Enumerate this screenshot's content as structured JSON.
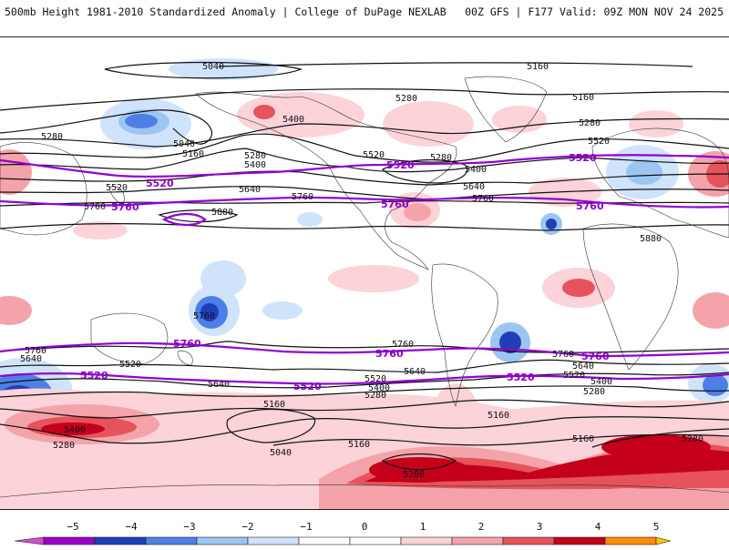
{
  "header": {
    "left_title": "500mb Height 1981-2010 Standardized Anomaly | College of DuPage NEXLAB",
    "right_title": "00Z GFS | F177 Valid: 09Z MON NOV 24 2025"
  },
  "map": {
    "black_contour_labels": [
      "5040",
      "5160",
      "5280",
      "5400",
      "5520",
      "5640",
      "5760",
      "5880"
    ],
    "purple_contour_labels": [
      "5520",
      "5760"
    ],
    "colors": {
      "contour": "#111111",
      "highlight_contour": "#9400d3",
      "neg1": "#cfe4fb",
      "neg2": "#9cc6f2",
      "neg3": "#4d7fe6",
      "neg4": "#1f3fb8",
      "pos1": "#fbd3d8",
      "pos2": "#f4a3aa",
      "pos3": "#e6535c",
      "pos4": "#c4001b"
    }
  },
  "legend": {
    "ticks": [
      "−5",
      "−4",
      "−3",
      "−2",
      "−1",
      "0",
      "1",
      "2",
      "3",
      "4",
      "5"
    ],
    "colors": [
      "#d34cd6",
      "#9a00c8",
      "#1f3fb8",
      "#4d7fe6",
      "#9cc6f2",
      "#cfe4fb",
      "#ffffff",
      "#ffffff",
      "#fbd3d8",
      "#f4a3aa",
      "#e6535c",
      "#c4001b",
      "#ff8c00",
      "#ffc400"
    ]
  }
}
